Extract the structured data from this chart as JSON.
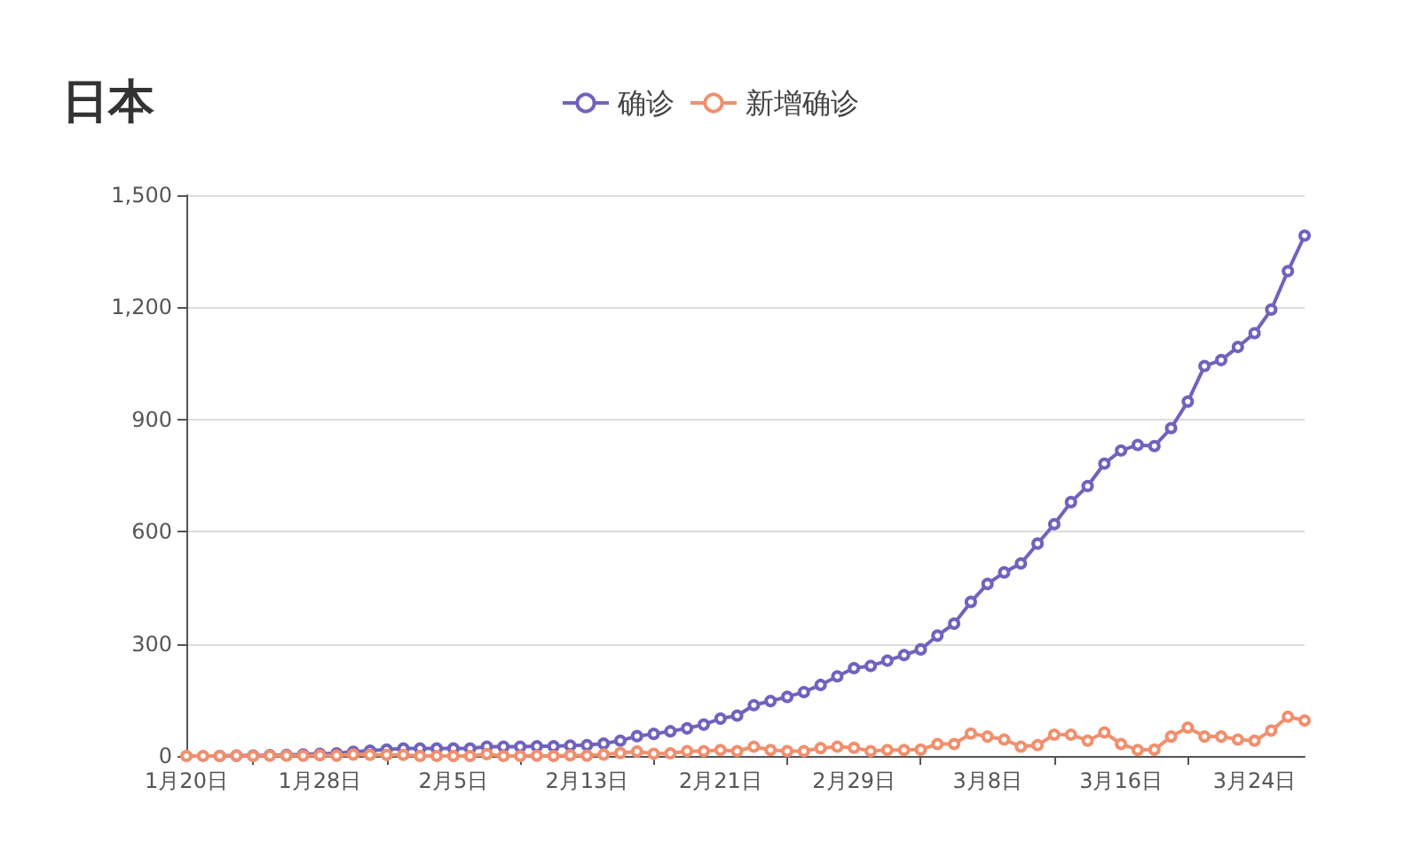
{
  "chart_data": {
    "type": "line",
    "title": "日本",
    "categories": [
      "1月20日",
      null,
      null,
      null,
      null,
      null,
      null,
      null,
      "1月28日",
      null,
      null,
      null,
      null,
      null,
      null,
      null,
      "2月5日",
      null,
      null,
      null,
      null,
      null,
      null,
      null,
      "2月13日",
      null,
      null,
      null,
      null,
      null,
      null,
      null,
      "2月21日",
      null,
      null,
      null,
      null,
      null,
      null,
      null,
      "2月29日",
      null,
      null,
      null,
      null,
      null,
      null,
      null,
      "3月8日",
      null,
      null,
      null,
      null,
      null,
      null,
      null,
      "3月16日",
      null,
      null,
      null,
      null,
      null,
      null,
      null,
      "3月24日",
      null,
      null,
      null
    ],
    "series": [
      {
        "name": "确诊",
        "color": "#6f63bd",
        "values": [
          null,
          null,
          0,
          1,
          1,
          2,
          3,
          4,
          6,
          7,
          11,
          14,
          17,
          20,
          20,
          20,
          20,
          20,
          25,
          25,
          25,
          26,
          26,
          28,
          29,
          33,
          41,
          53,
          59,
          66,
          74,
          84,
          100,
          108,
          136,
          147,
          158,
          171,
          190,
          213,
          235,
          241,
          255,
          270,
          285,
          322,
          354,
          412,
          460,
          491,
          515,
          568,
          620,
          679,
          722,
          782,
          817,
          832,
          829,
          877,
          948,
          1043,
          1059,
          1094,
          1131,
          1194,
          1297,
          1392
        ]
      },
      {
        "name": "新增确诊",
        "color": "#f0906e",
        "values": [
          0,
          0,
          0,
          1,
          0,
          1,
          1,
          1,
          2,
          1,
          4,
          3,
          3,
          3,
          0,
          0,
          0,
          0,
          5,
          0,
          0,
          1,
          0,
          2,
          1,
          4,
          8,
          12,
          6,
          7,
          13,
          13,
          16,
          13,
          25,
          16,
          13,
          13,
          21,
          25,
          22,
          13,
          16,
          16,
          17,
          32,
          32,
          60,
          52,
          44,
          25,
          29,
          57,
          57,
          41,
          63,
          32,
          16,
          17,
          52,
          76,
          52,
          52,
          44,
          41,
          68,
          105,
          95
        ]
      }
    ],
    "ylim": [
      0,
      1500
    ],
    "yticks": [
      0,
      300,
      600,
      900,
      {
        "value": 1200,
        "label": "1,200"
      },
      {
        "value": 1500,
        "label": "1,500"
      }
    ],
    "grid": "y",
    "legend": "top",
    "marker": "circle",
    "line_style": "solid"
  }
}
